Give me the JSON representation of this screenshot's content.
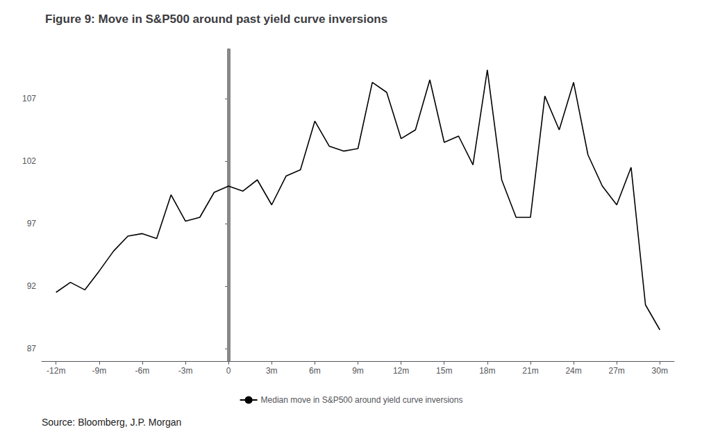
{
  "chart_data": {
    "type": "line",
    "title": "Figure 9: Move in S&P500 around past yield curve inversions",
    "source": "Source: Bloomberg, J.P. Morgan",
    "x": [
      -12,
      -11,
      -10,
      -9,
      -8,
      -7,
      -6,
      -5,
      -4,
      -3,
      -2,
      -1,
      0,
      1,
      2,
      3,
      4,
      5,
      6,
      7,
      8,
      9,
      10,
      11,
      12,
      13,
      14,
      15,
      16,
      17,
      18,
      19,
      20,
      21,
      22,
      23,
      24,
      25,
      26,
      27,
      28,
      29,
      30
    ],
    "series": [
      {
        "name": "Median move in S&P500 around yield curve inversions",
        "color": "#000000",
        "values": [
          91.5,
          92.3,
          91.7,
          93.2,
          94.8,
          96.0,
          96.2,
          95.8,
          99.3,
          97.2,
          97.5,
          99.5,
          100.0,
          99.6,
          100.5,
          98.5,
          100.8,
          101.3,
          105.2,
          103.2,
          102.8,
          103.0,
          108.3,
          107.5,
          103.8,
          104.5,
          108.5,
          103.5,
          104.0,
          101.7,
          109.3,
          100.5,
          97.5,
          97.5,
          107.2,
          104.5,
          108.3,
          102.5,
          100.0,
          98.5,
          101.5,
          90.5,
          88.5
        ]
      }
    ],
    "vline": {
      "x": 0,
      "color": "#888888"
    },
    "xlim": [
      -13,
      31
    ],
    "xticks": [
      {
        "value": -12,
        "label": "-12m"
      },
      {
        "value": -9,
        "label": "-9m"
      },
      {
        "value": -6,
        "label": "-6m"
      },
      {
        "value": -3,
        "label": "-3m"
      },
      0,
      {
        "value": 3,
        "label": "3m"
      },
      {
        "value": 6,
        "label": "6m"
      },
      {
        "value": 9,
        "label": "9m"
      },
      {
        "value": 12,
        "label": "12m"
      },
      {
        "value": 15,
        "label": "15m"
      },
      {
        "value": 18,
        "label": "18m"
      },
      {
        "value": 21,
        "label": "21m"
      },
      {
        "value": 24,
        "label": "24m"
      },
      {
        "value": 27,
        "label": "27m"
      },
      {
        "value": 30,
        "label": "30m"
      }
    ],
    "ylim": [
      86.0,
      111.0
    ],
    "yticks": [
      87,
      92,
      97,
      102,
      107
    ],
    "grid": false,
    "legend": "bottom"
  }
}
